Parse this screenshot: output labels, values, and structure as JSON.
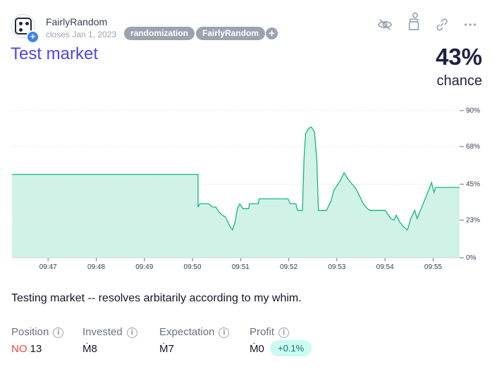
{
  "header": {
    "creator": "FairlyRandom",
    "closes": "closes Jan 1, 2023",
    "tags": [
      "randomization",
      "FairlyRandom"
    ],
    "tag_add": "+",
    "avatar_add": "+",
    "icons": [
      "eye-off-icon",
      "jar-icon",
      "link-icon",
      "more-icon"
    ]
  },
  "market": {
    "title": "Test market",
    "probability": "43%",
    "probability_label": "chance",
    "description": "Testing market -- resolves arbitarily according to my whim."
  },
  "chart_data": {
    "type": "area",
    "x_unit": "time",
    "x_ticks": [
      "09:47",
      "09:48",
      "09:49",
      "09:50",
      "09:51",
      "09:52",
      "09:53",
      "09:54",
      "09:55"
    ],
    "y_ticks": [
      "0%",
      "23%",
      "45%",
      "68%",
      "90%"
    ],
    "ylim": [
      0,
      90
    ],
    "grid": "horizontal",
    "color": "#10b981",
    "fill": "#d1f2e6",
    "points": [
      [
        "09:46:15",
        51
      ],
      [
        "09:50:07",
        51
      ],
      [
        "09:50:07",
        31
      ],
      [
        "09:50:09",
        33
      ],
      [
        "09:50:20",
        33
      ],
      [
        "09:50:25",
        31
      ],
      [
        "09:50:29",
        31
      ],
      [
        "09:50:33",
        28
      ],
      [
        "09:50:37",
        26
      ],
      [
        "09:50:41",
        25
      ],
      [
        "09:50:44",
        22
      ],
      [
        "09:50:47",
        19
      ],
      [
        "09:50:50",
        17
      ],
      [
        "09:50:53",
        22
      ],
      [
        "09:50:56",
        30
      ],
      [
        "09:50:59",
        33
      ],
      [
        "09:51:03",
        30
      ],
      [
        "09:51:10",
        30
      ],
      [
        "09:51:11",
        33
      ],
      [
        "09:51:22",
        33
      ],
      [
        "09:51:23",
        36
      ],
      [
        "09:51:59",
        36
      ],
      [
        "09:52:02",
        33
      ],
      [
        "09:52:09",
        33
      ],
      [
        "09:52:11",
        29
      ],
      [
        "09:52:17",
        29
      ],
      [
        "09:52:19",
        60
      ],
      [
        "09:52:21",
        76
      ],
      [
        "09:52:25",
        79
      ],
      [
        "09:52:28",
        80
      ],
      [
        "09:52:32",
        77
      ],
      [
        "09:52:35",
        60
      ],
      [
        "09:52:37",
        29
      ],
      [
        "09:52:47",
        29
      ],
      [
        "09:52:50",
        32
      ],
      [
        "09:52:53",
        35
      ],
      [
        "09:52:56",
        41
      ],
      [
        "09:53:00",
        44
      ],
      [
        "09:53:04",
        47
      ],
      [
        "09:53:09",
        52
      ],
      [
        "09:53:14",
        48
      ],
      [
        "09:53:19",
        45
      ],
      [
        "09:53:24",
        42
      ],
      [
        "09:53:28",
        38
      ],
      [
        "09:53:33",
        33
      ],
      [
        "09:53:38",
        30
      ],
      [
        "09:53:41",
        29
      ],
      [
        "09:54:00",
        29
      ],
      [
        "09:54:03",
        27
      ],
      [
        "09:54:07",
        24
      ],
      [
        "09:54:11",
        23
      ],
      [
        "09:54:14",
        26
      ],
      [
        "09:54:18",
        22
      ],
      [
        "09:54:23",
        19
      ],
      [
        "09:54:28",
        17
      ],
      [
        "09:54:32",
        24
      ],
      [
        "09:54:37",
        29
      ],
      [
        "09:54:40",
        24
      ],
      [
        "09:54:45",
        30
      ],
      [
        "09:54:50",
        36
      ],
      [
        "09:54:54",
        41
      ],
      [
        "09:54:58",
        46
      ],
      [
        "09:55:01",
        40
      ],
      [
        "09:55:03",
        43
      ],
      [
        "09:55:33",
        43
      ]
    ]
  },
  "stats": {
    "position_label": "Position",
    "position_outcome": "NO",
    "position_shares": "13",
    "invested_label": "Invested",
    "invested_value": "Ṁ8",
    "expectation_label": "Expectation",
    "expectation_value": "Ṁ7",
    "profit_label": "Profit",
    "profit_value": "Ṁ0",
    "profit_percent": "+0.1%",
    "info_glyph": "i"
  }
}
